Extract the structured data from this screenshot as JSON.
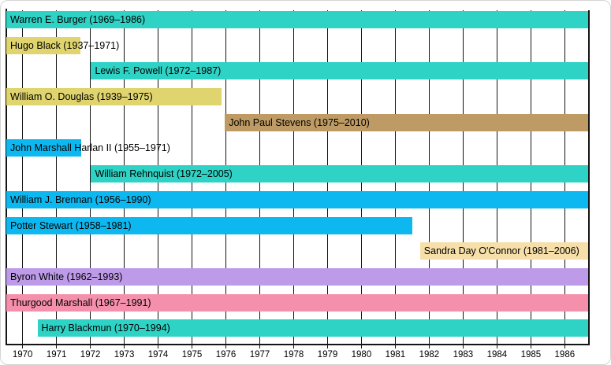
{
  "chart_data": {
    "type": "gantt-timeline",
    "title": "",
    "x_axis": {
      "min": 1969.52,
      "max": 1986.69,
      "ticks": [
        1970,
        1971,
        1972,
        1973,
        1974,
        1975,
        1976,
        1977,
        1978,
        1979,
        1980,
        1981,
        1982,
        1983,
        1984,
        1985,
        1986
      ],
      "grid": true
    },
    "legend": "none",
    "colors": {
      "teal": "#2ED3C5",
      "yellow": "#E0D46E",
      "blue": "#0DB8F0",
      "brown": "#BE9B64",
      "wheat": "#F6DFA9",
      "purple": "#BE9BE8",
      "pink": "#F590AC"
    },
    "bars": [
      {
        "label": "Warren E. Burger (1969–1986)",
        "start": 1969.48,
        "end": 1986.74,
        "color": "teal"
      },
      {
        "label": "Hugo Black (1937–1971)",
        "start": 1937.62,
        "end": 1971.71,
        "color": "yellow"
      },
      {
        "label": "Lewis F. Powell (1972–1987)",
        "start": 1972.02,
        "end": 1987.49,
        "color": "teal"
      },
      {
        "label": "William O. Douglas (1939–1975)",
        "start": 1939.28,
        "end": 1975.87,
        "color": "yellow"
      },
      {
        "label": "John Paul Stevens (1975–2010)",
        "start": 1975.97,
        "end": 2010.48,
        "color": "brown"
      },
      {
        "label": "John Marshall Harlan II (1955–1971)",
        "start": 1955.23,
        "end": 1971.73,
        "color": "blue"
      },
      {
        "label": "William Rehnquist (1972–2005)",
        "start": 1972.02,
        "end": 2005.67,
        "color": "teal"
      },
      {
        "label": "William J. Brennan (1956–1990)",
        "start": 1956.79,
        "end": 1990.56,
        "color": "blue"
      },
      {
        "label": "Potter Stewart (1958–1981)",
        "start": 1958.78,
        "end": 1981.5,
        "color": "blue"
      },
      {
        "label": "Sandra Day O'Connor (1981–2006)",
        "start": 1981.73,
        "end": 2006.07,
        "color": "wheat"
      },
      {
        "label": "Byron White (1962–1993)",
        "start": 1962.28,
        "end": 1993.49,
        "color": "purple"
      },
      {
        "label": "Thurgood Marshall (1967–1991)",
        "start": 1967.75,
        "end": 1991.49,
        "color": "pink"
      },
      {
        "label": "Harry Blackmun (1970–1994)",
        "start": 1970.44,
        "end": 1994.6,
        "color": "teal"
      }
    ]
  }
}
